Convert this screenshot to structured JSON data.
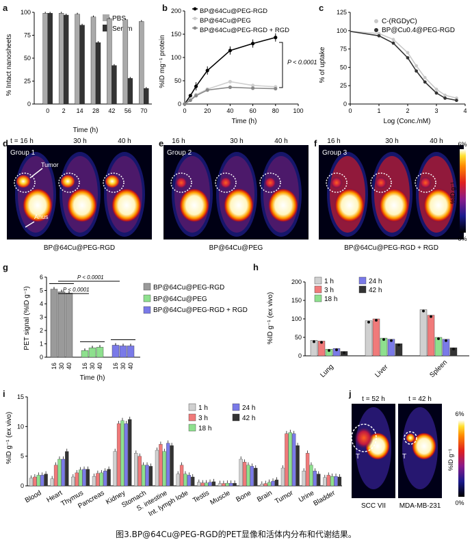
{
  "panel_letters": [
    "a",
    "b",
    "c",
    "d",
    "e",
    "f",
    "g",
    "h",
    "i",
    "j"
  ],
  "colors": {
    "light": "#aaaaaa",
    "dark": "#333333",
    "pale": "#d0d0d0",
    "green": "#8ee08e",
    "red": "#f07a7a",
    "blue": "#7a7ae8",
    "black": "#000000"
  },
  "chart_data": [
    {
      "panel": "a",
      "type": "bar",
      "categories": [
        "0",
        "2",
        "14",
        "28",
        "42",
        "56",
        "70"
      ],
      "series": [
        {
          "name": "PBS",
          "values": [
            99,
            99,
            98,
            95,
            93,
            92,
            90
          ]
        },
        {
          "name": "Serum",
          "values": [
            99,
            97,
            86,
            67,
            42,
            28,
            17
          ]
        }
      ],
      "xlabel": "Time (h)",
      "ylabel": "% Intact nanosheets",
      "ylim": [
        0,
        100
      ],
      "yticks": [
        "0",
        "25",
        "50",
        "75",
        "100"
      ],
      "legend": "top-right"
    },
    {
      "panel": "b",
      "type": "line",
      "x": [
        0,
        5,
        10,
        20,
        40,
        60,
        80
      ],
      "series": [
        {
          "name": "BP@64Cu@PEG-RGD",
          "values": [
            0,
            18,
            38,
            72,
            115,
            130,
            143
          ]
        },
        {
          "name": "BP@64Cu@PEG",
          "values": [
            0,
            10,
            20,
            32,
            48,
            40,
            37
          ]
        },
        {
          "name": "BP@64Cu@PEG-RGD + RGD",
          "values": [
            0,
            8,
            18,
            30,
            36,
            34,
            33
          ]
        }
      ],
      "xlabel": "Time (h)",
      "ylabel": "%ID mg⁻¹ protein",
      "xlim": [
        0,
        100
      ],
      "ylim": [
        0,
        200
      ],
      "xticks": [
        "0",
        "20",
        "40",
        "60",
        "80",
        "100"
      ],
      "yticks": [
        "0",
        "50",
        "100",
        "150",
        "200"
      ],
      "annotation": "P < 0.0001",
      "legend": "top-left"
    },
    {
      "panel": "c",
      "type": "line",
      "x": [
        0,
        1,
        1.5,
        2,
        2.3,
        2.6,
        3,
        3.3,
        3.7
      ],
      "series": [
        {
          "name": "C-(RGDyC)",
          "values": [
            99,
            96,
            88,
            70,
            52,
            36,
            20,
            12,
            8
          ]
        },
        {
          "name": "BP@Cu0.4@PEG-RGD",
          "values": [
            99,
            93,
            83,
            63,
            45,
            30,
            15,
            8,
            5
          ]
        }
      ],
      "xlabel": "Log (Conc./nM)",
      "ylabel": "% of uptake",
      "xlim": [
        0,
        4
      ],
      "ylim": [
        0,
        125
      ],
      "xticks": [
        "0",
        "1",
        "2",
        "3",
        "4"
      ],
      "yticks": [
        "0",
        "25",
        "50",
        "75",
        "100",
        "125"
      ],
      "legend": "top-right"
    },
    {
      "panel": "g",
      "type": "bar",
      "groups": [
        "BP@64Cu@PEG-RGD",
        "BP@64Cu@PEG",
        "BP@64Cu@PEG-RGD + RGD"
      ],
      "categories": [
        "16",
        "30",
        "40"
      ],
      "values": [
        [
          5.1,
          4.9,
          4.8
        ],
        [
          0.5,
          0.7,
          0.75
        ],
        [
          0.9,
          0.85,
          0.85
        ]
      ],
      "xlabel": "Time (h)",
      "ylabel": "PET signal (%ID g⁻¹)",
      "ylim": [
        0,
        6
      ],
      "yticks": [
        "0",
        "1",
        "2",
        "3",
        "4",
        "5",
        "6"
      ],
      "annotations": [
        "P < 0.0001",
        "P < 0.0001"
      ],
      "legend": "right"
    },
    {
      "panel": "h",
      "type": "bar",
      "categories": [
        "Lung",
        "Liver",
        "Spleen"
      ],
      "series": [
        {
          "name": "1 h",
          "values": [
            42,
            95,
            125
          ]
        },
        {
          "name": "3 h",
          "values": [
            40,
            100,
            110
          ]
        },
        {
          "name": "18 h",
          "values": [
            18,
            48,
            50
          ]
        },
        {
          "name": "24 h",
          "values": [
            20,
            45,
            45
          ]
        },
        {
          "name": "42 h",
          "values": [
            12,
            33,
            22
          ]
        }
      ],
      "ylabel": "%ID g⁻¹ (ex vivo)",
      "ylim": [
        0,
        200
      ],
      "yticks": [
        "0",
        "50",
        "100",
        "150",
        "200"
      ],
      "legend": "top"
    },
    {
      "panel": "i",
      "type": "bar",
      "categories": [
        "Blood",
        "Heart",
        "Thymus",
        "Pancreas",
        "Kidney",
        "Stomach",
        "S. intestine",
        "Int. lymph lode",
        "Testis",
        "Muscle",
        "Bone",
        "Brain",
        "Tumor",
        "Urine",
        "Bladder"
      ],
      "series": [
        {
          "name": "1 h",
          "values": [
            1.3,
            1.2,
            1.5,
            1.6,
            5.8,
            5.5,
            6.0,
            2.0,
            0.6,
            0.4,
            4.5,
            0.3,
            3.0,
            2.5,
            1.4
          ]
        },
        {
          "name": "3 h",
          "values": [
            1.5,
            3.5,
            2.2,
            2.1,
            10.5,
            5.0,
            7.0,
            3.5,
            0.5,
            0.4,
            4.0,
            0.4,
            8.8,
            5.5,
            1.8
          ]
        },
        {
          "name": "18 h",
          "values": [
            1.8,
            4.5,
            2.7,
            2.2,
            11.0,
            3.5,
            5.8,
            2.0,
            0.5,
            0.45,
            3.5,
            0.6,
            9.0,
            3.5,
            1.6
          ]
        },
        {
          "name": "24 h",
          "values": [
            1.8,
            4.5,
            2.8,
            2.5,
            10.5,
            3.5,
            7.2,
            1.8,
            0.6,
            0.45,
            3.3,
            0.8,
            8.8,
            2.5,
            1.6
          ]
        },
        {
          "name": "42 h",
          "values": [
            2.0,
            5.8,
            2.8,
            2.8,
            11.2,
            3.3,
            6.8,
            1.5,
            0.7,
            0.45,
            3.0,
            1.0,
            6.8,
            2.0,
            1.5
          ]
        }
      ],
      "ylabel": "%ID g⁻¹ (ex vivo)",
      "ylim": [
        0,
        15
      ],
      "yticks": [
        "0",
        "5",
        "10",
        "15"
      ],
      "legend": "top-right"
    }
  ],
  "pet": {
    "d": {
      "times": [
        "t = 16 h",
        "30 h",
        "40 h"
      ],
      "group": "Group 1",
      "tumor": "Tumor",
      "anus": "Anus",
      "caption": "BP@64Cu@PEG-RGD"
    },
    "e": {
      "times": [
        "16 h",
        "30 h",
        "40 h"
      ],
      "group": "Group 2",
      "caption": "BP@64Cu@PEG"
    },
    "f": {
      "times": [
        "16 h",
        "30 h",
        "40 h"
      ],
      "group": "Group 3",
      "caption": "BP@64Cu@PEG-RGD + RGD"
    },
    "scale": {
      "max": "6%",
      "min": "0%",
      "unit": "%ID g⁻¹"
    }
  },
  "panel_j": {
    "times": [
      "t = 52 h",
      "t = 42 h"
    ],
    "labels": [
      "SCC VII",
      "MDA-MB-231"
    ],
    "tumor_marks": [
      "T",
      "T"
    ],
    "scale": {
      "max": "6%",
      "min": "0%",
      "unit": "%ID g⁻¹"
    }
  },
  "figure_caption": "图3.BP@64Cu@PEG-RGD的PET显像和活体内分布和代谢结果。"
}
